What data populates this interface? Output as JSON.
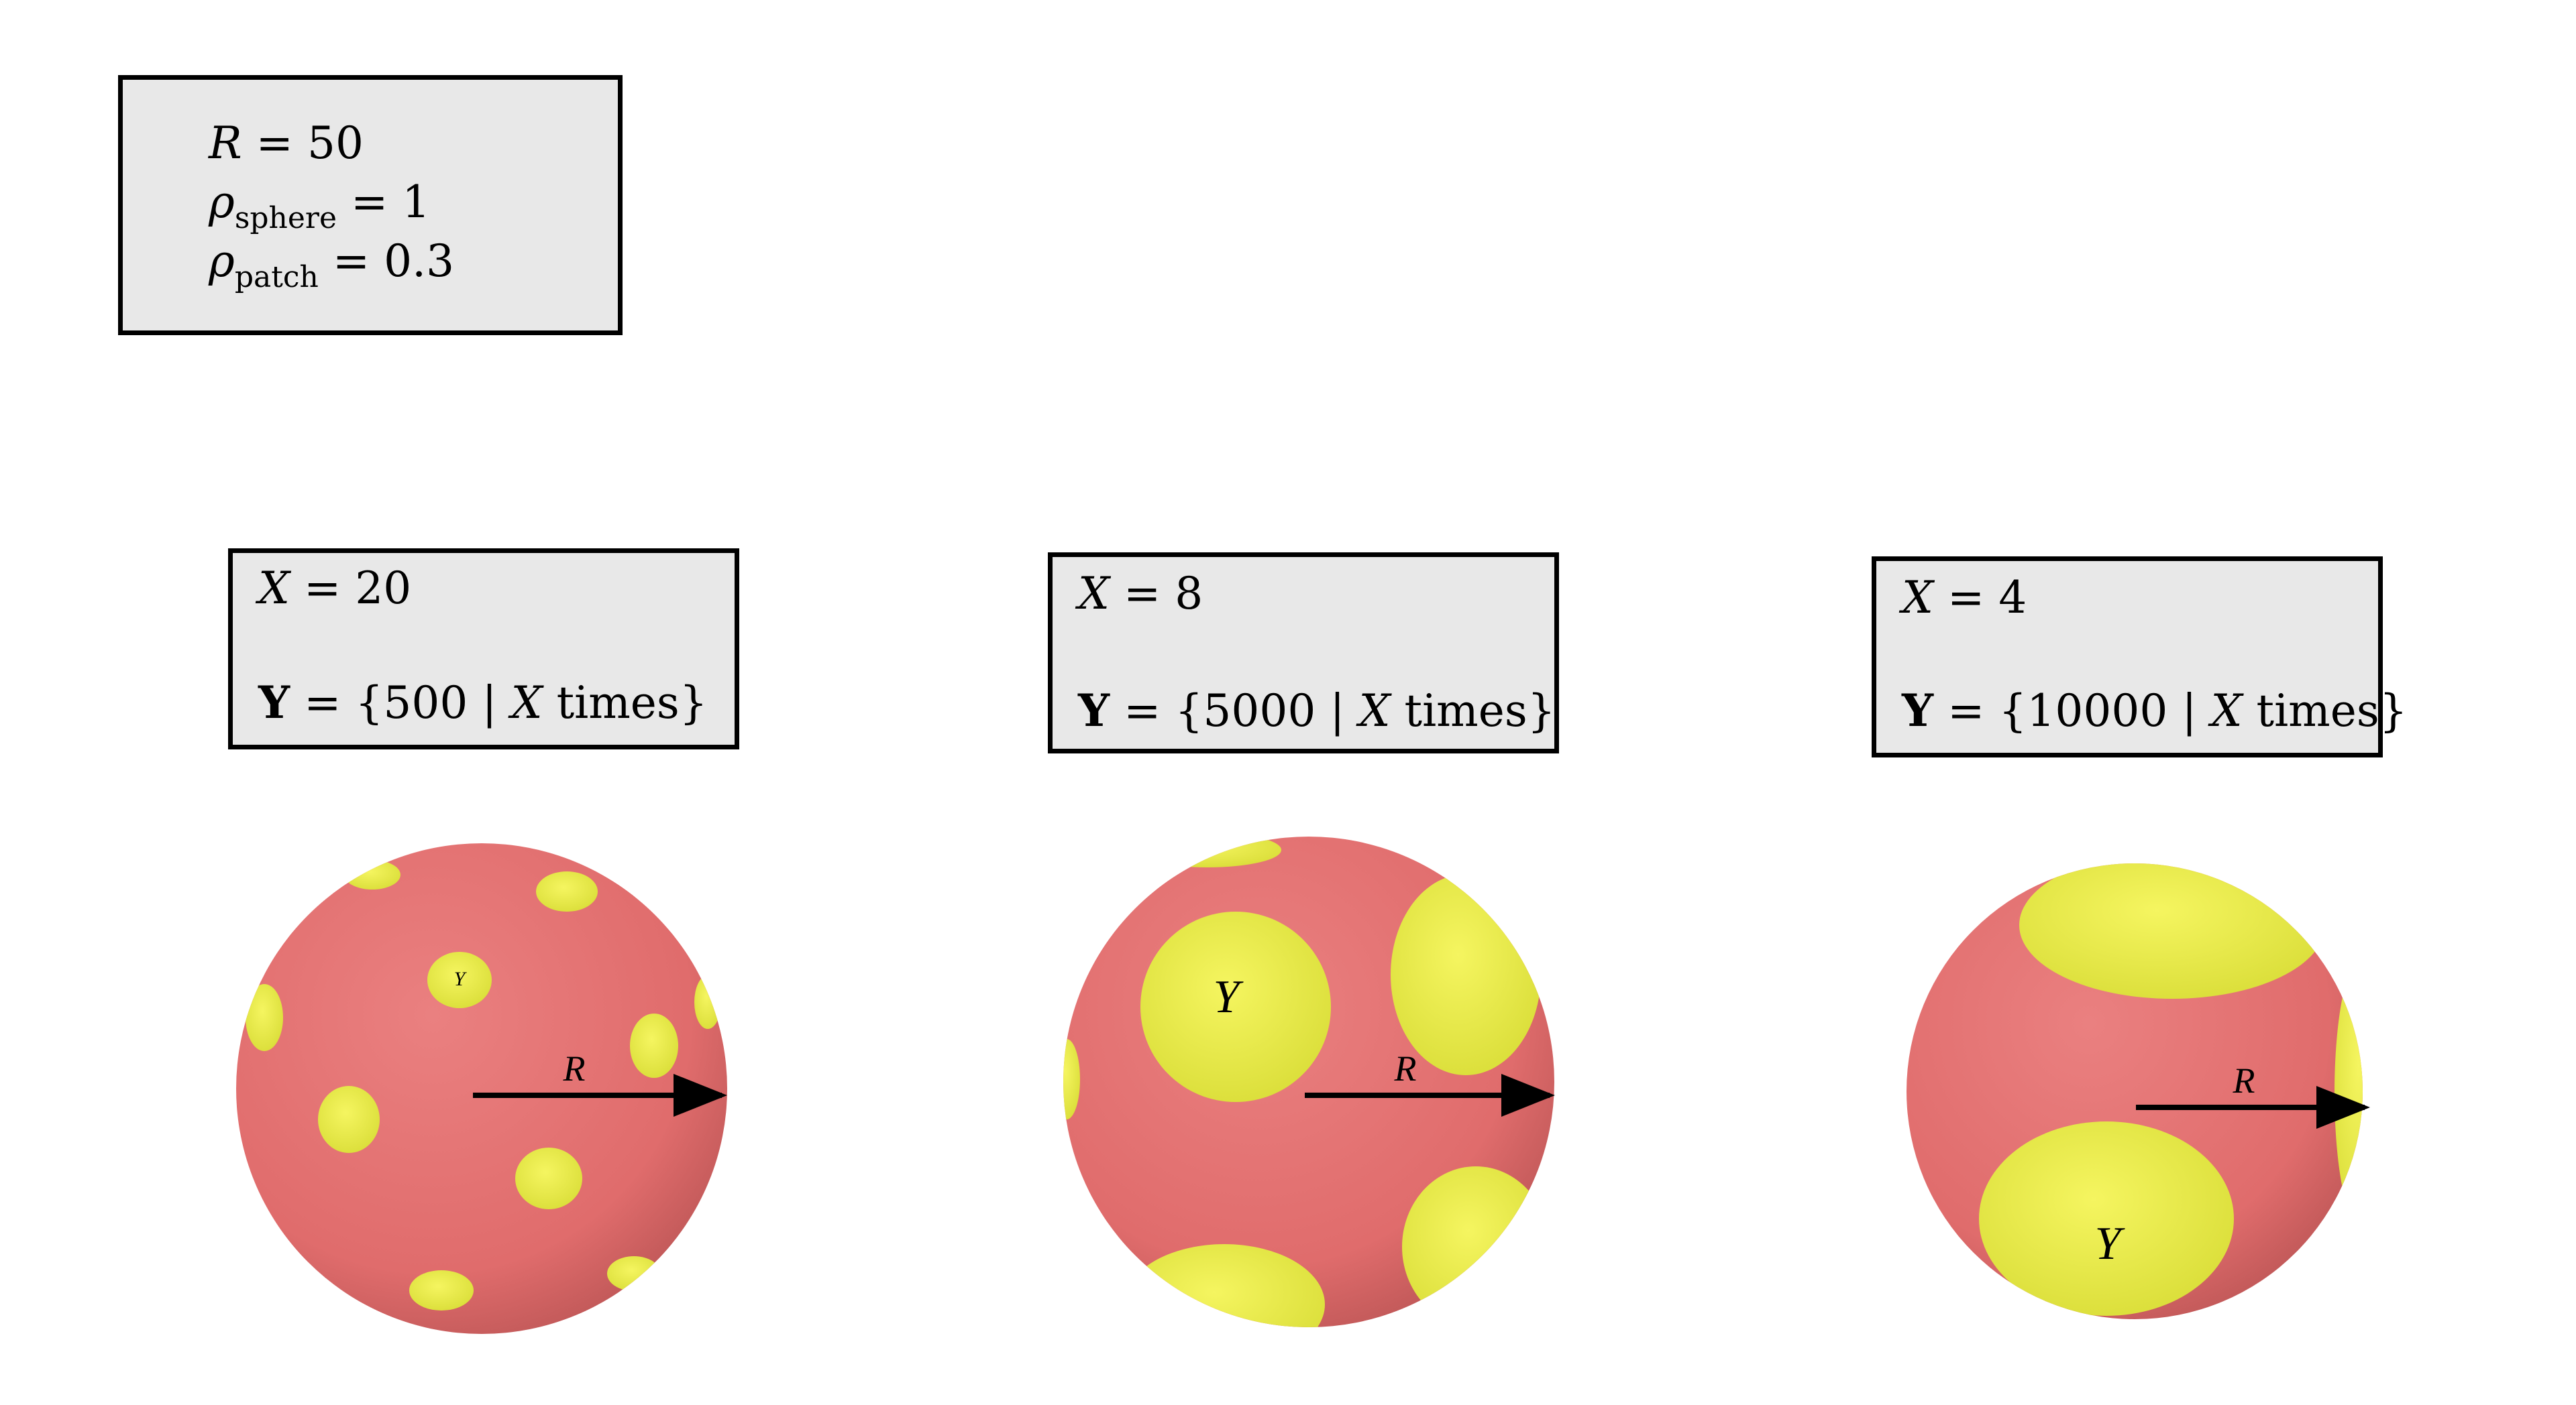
{
  "params": {
    "r_label": "R",
    "r_value": "50",
    "rho_sphere_symbol": "ρ",
    "rho_sphere_sub": "sphere",
    "rho_sphere_value": "1",
    "rho_patch_symbol": "ρ",
    "rho_patch_sub": "patch",
    "rho_patch_value": "0.3"
  },
  "panels": [
    {
      "x_label": "X",
      "x_value": "20",
      "y_label": "Y",
      "y_value": "500",
      "times_var": "X",
      "times_word": "times",
      "patch_label": "Y",
      "radius_label": "R"
    },
    {
      "x_label": "X",
      "x_value": "8",
      "y_label": "Y",
      "y_value": "5000",
      "times_var": "X",
      "times_word": "times",
      "patch_label": "Y",
      "radius_label": "R"
    },
    {
      "x_label": "X",
      "x_value": "4",
      "y_label": "Y",
      "y_value": "10000",
      "times_var": "X",
      "times_word": "times",
      "patch_label": "Y",
      "radius_label": "R"
    }
  ],
  "colors": {
    "sphere": "#e07070",
    "patch": "#eef04a",
    "box_bg": "#e8e8e8"
  }
}
